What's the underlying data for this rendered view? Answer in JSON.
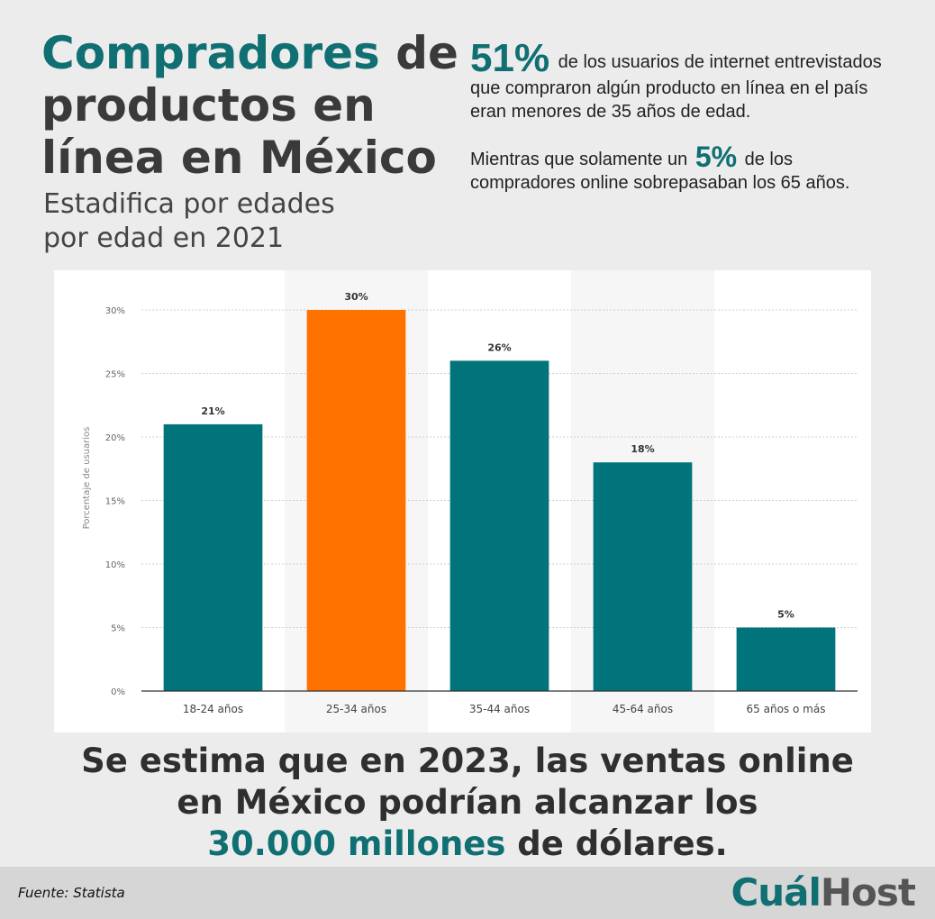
{
  "header": {
    "title_accent": "Compradores",
    "title_rest": " de productos en línea en México",
    "subtitle_line1": "Estadifica por edades",
    "subtitle_line2": "por edad en 2021"
  },
  "stats": {
    "stat1_value": "51%",
    "stat1_text": " de los usuarios de internet entrevistados que compraron algún producto en línea en el país eran menores de 35 años de edad.",
    "stat2_pre": "Mientras que solamente un ",
    "stat2_value": "5%",
    "stat2_post": " de los compradores online sobrepasaban los 65 años."
  },
  "chart_data": {
    "type": "bar",
    "categories": [
      "18-24 años",
      "25-34 años",
      "35-44 años",
      "45-64 años",
      "65 años o más"
    ],
    "values": [
      21,
      30,
      26,
      18,
      5
    ],
    "data_labels": [
      "21%",
      "30%",
      "26%",
      "18%",
      "5%"
    ],
    "ylabel": "Porcentaje de usuarios",
    "ylim": [
      0,
      30
    ],
    "yticks": [
      0,
      5,
      10,
      15,
      20,
      25,
      30
    ],
    "ytick_labels": [
      "0%",
      "5%",
      "10%",
      "15%",
      "20%",
      "25%",
      "30%"
    ],
    "grid": true,
    "bar_color": "#00747a",
    "highlight_index": 1,
    "highlight_color": "#ff7200"
  },
  "footer": {
    "line1": "Se estima que en 2023, las ventas online",
    "line2": "en México podrían alcanzar los",
    "line3_accent": "30.000 millones",
    "line3_rest": " de dólares."
  },
  "source": {
    "text": "Fuente: Statista"
  },
  "logo": {
    "part1": "Cuál",
    "part2": "Host"
  },
  "colors": {
    "accent": "#0f6f72",
    "highlight": "#ff7200",
    "background": "#ececec"
  }
}
